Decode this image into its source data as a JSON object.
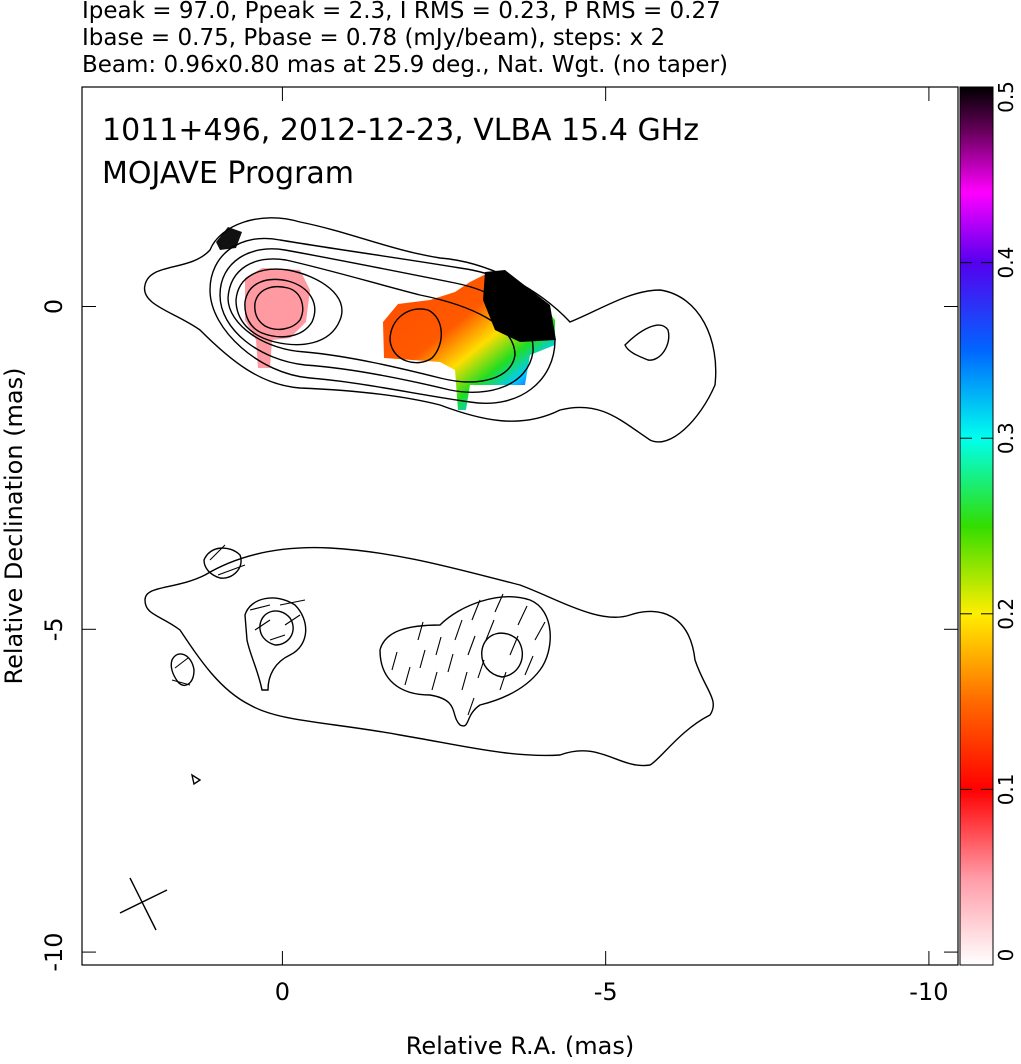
{
  "chart_data": {
    "type": "image",
    "header": [
      "Ipeak = 97.0, Ppeak = 2.3, I RMS = 0.23, P RMS = 0.27",
      "Ibase = 0.75, Pbase = 0.78 (mJy/beam), steps: x 2",
      "Beam: 0.96x0.80 mas at 25.9 deg., Nat. Wgt. (no taper)"
    ],
    "annotations": [
      "1011+496, 2012-12-23, VLBA 15.4 GHz",
      "MOJAVE Program"
    ],
    "xlabel": "Relative R.A. (mas)",
    "ylabel": "Relative Declination (mas)",
    "xlim": [
      3.1,
      -10.45
    ],
    "ylim": [
      -10.2,
      3.4
    ],
    "xticks": [
      0,
      -5,
      -10
    ],
    "yticks": [
      0,
      -5,
      -10
    ],
    "colorbar": {
      "lim": [
        0,
        0.5
      ],
      "ticks": [
        0,
        0.1,
        0.2,
        0.3,
        0.4,
        0.5
      ]
    }
  }
}
